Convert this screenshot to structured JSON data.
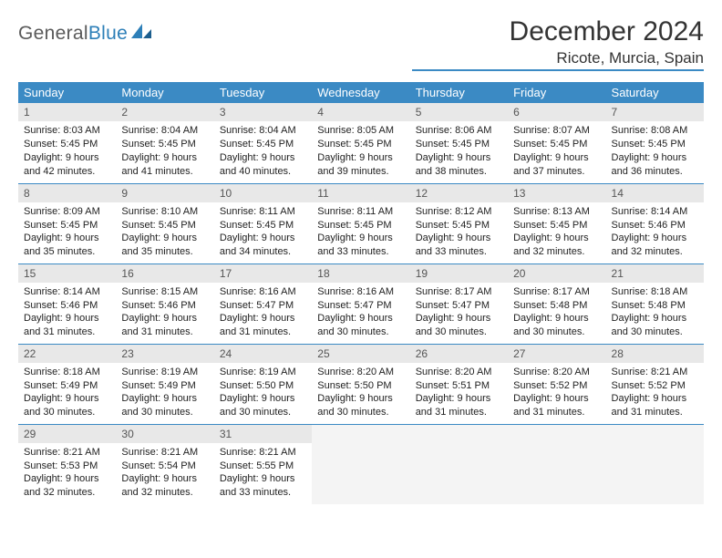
{
  "logo": {
    "word1": "General",
    "word2": "Blue"
  },
  "title": "December 2024",
  "location": "Ricote, Murcia, Spain",
  "colors": {
    "header_bg": "#3b8ac4",
    "header_text": "#ffffff",
    "daynum_bg": "#e8e8e8",
    "rule": "#3b8ac4",
    "logo_gray": "#5a5a5a",
    "logo_blue": "#2d7fb8"
  },
  "weekdays": [
    "Sunday",
    "Monday",
    "Tuesday",
    "Wednesday",
    "Thursday",
    "Friday",
    "Saturday"
  ],
  "weeks": [
    [
      {
        "n": "1",
        "sunrise": "8:03 AM",
        "sunset": "5:45 PM",
        "daylight": "9 hours and 42 minutes."
      },
      {
        "n": "2",
        "sunrise": "8:04 AM",
        "sunset": "5:45 PM",
        "daylight": "9 hours and 41 minutes."
      },
      {
        "n": "3",
        "sunrise": "8:04 AM",
        "sunset": "5:45 PM",
        "daylight": "9 hours and 40 minutes."
      },
      {
        "n": "4",
        "sunrise": "8:05 AM",
        "sunset": "5:45 PM",
        "daylight": "9 hours and 39 minutes."
      },
      {
        "n": "5",
        "sunrise": "8:06 AM",
        "sunset": "5:45 PM",
        "daylight": "9 hours and 38 minutes."
      },
      {
        "n": "6",
        "sunrise": "8:07 AM",
        "sunset": "5:45 PM",
        "daylight": "9 hours and 37 minutes."
      },
      {
        "n": "7",
        "sunrise": "8:08 AM",
        "sunset": "5:45 PM",
        "daylight": "9 hours and 36 minutes."
      }
    ],
    [
      {
        "n": "8",
        "sunrise": "8:09 AM",
        "sunset": "5:45 PM",
        "daylight": "9 hours and 35 minutes."
      },
      {
        "n": "9",
        "sunrise": "8:10 AM",
        "sunset": "5:45 PM",
        "daylight": "9 hours and 35 minutes."
      },
      {
        "n": "10",
        "sunrise": "8:11 AM",
        "sunset": "5:45 PM",
        "daylight": "9 hours and 34 minutes."
      },
      {
        "n": "11",
        "sunrise": "8:11 AM",
        "sunset": "5:45 PM",
        "daylight": "9 hours and 33 minutes."
      },
      {
        "n": "12",
        "sunrise": "8:12 AM",
        "sunset": "5:45 PM",
        "daylight": "9 hours and 33 minutes."
      },
      {
        "n": "13",
        "sunrise": "8:13 AM",
        "sunset": "5:45 PM",
        "daylight": "9 hours and 32 minutes."
      },
      {
        "n": "14",
        "sunrise": "8:14 AM",
        "sunset": "5:46 PM",
        "daylight": "9 hours and 32 minutes."
      }
    ],
    [
      {
        "n": "15",
        "sunrise": "8:14 AM",
        "sunset": "5:46 PM",
        "daylight": "9 hours and 31 minutes."
      },
      {
        "n": "16",
        "sunrise": "8:15 AM",
        "sunset": "5:46 PM",
        "daylight": "9 hours and 31 minutes."
      },
      {
        "n": "17",
        "sunrise": "8:16 AM",
        "sunset": "5:47 PM",
        "daylight": "9 hours and 31 minutes."
      },
      {
        "n": "18",
        "sunrise": "8:16 AM",
        "sunset": "5:47 PM",
        "daylight": "9 hours and 30 minutes."
      },
      {
        "n": "19",
        "sunrise": "8:17 AM",
        "sunset": "5:47 PM",
        "daylight": "9 hours and 30 minutes."
      },
      {
        "n": "20",
        "sunrise": "8:17 AM",
        "sunset": "5:48 PM",
        "daylight": "9 hours and 30 minutes."
      },
      {
        "n": "21",
        "sunrise": "8:18 AM",
        "sunset": "5:48 PM",
        "daylight": "9 hours and 30 minutes."
      }
    ],
    [
      {
        "n": "22",
        "sunrise": "8:18 AM",
        "sunset": "5:49 PM",
        "daylight": "9 hours and 30 minutes."
      },
      {
        "n": "23",
        "sunrise": "8:19 AM",
        "sunset": "5:49 PM",
        "daylight": "9 hours and 30 minutes."
      },
      {
        "n": "24",
        "sunrise": "8:19 AM",
        "sunset": "5:50 PM",
        "daylight": "9 hours and 30 minutes."
      },
      {
        "n": "25",
        "sunrise": "8:20 AM",
        "sunset": "5:50 PM",
        "daylight": "9 hours and 30 minutes."
      },
      {
        "n": "26",
        "sunrise": "8:20 AM",
        "sunset": "5:51 PM",
        "daylight": "9 hours and 31 minutes."
      },
      {
        "n": "27",
        "sunrise": "8:20 AM",
        "sunset": "5:52 PM",
        "daylight": "9 hours and 31 minutes."
      },
      {
        "n": "28",
        "sunrise": "8:21 AM",
        "sunset": "5:52 PM",
        "daylight": "9 hours and 31 minutes."
      }
    ],
    [
      {
        "n": "29",
        "sunrise": "8:21 AM",
        "sunset": "5:53 PM",
        "daylight": "9 hours and 32 minutes."
      },
      {
        "n": "30",
        "sunrise": "8:21 AM",
        "sunset": "5:54 PM",
        "daylight": "9 hours and 32 minutes."
      },
      {
        "n": "31",
        "sunrise": "8:21 AM",
        "sunset": "5:55 PM",
        "daylight": "9 hours and 33 minutes."
      },
      null,
      null,
      null,
      null
    ]
  ],
  "labels": {
    "sunrise": "Sunrise:",
    "sunset": "Sunset:",
    "daylight": "Daylight:"
  }
}
